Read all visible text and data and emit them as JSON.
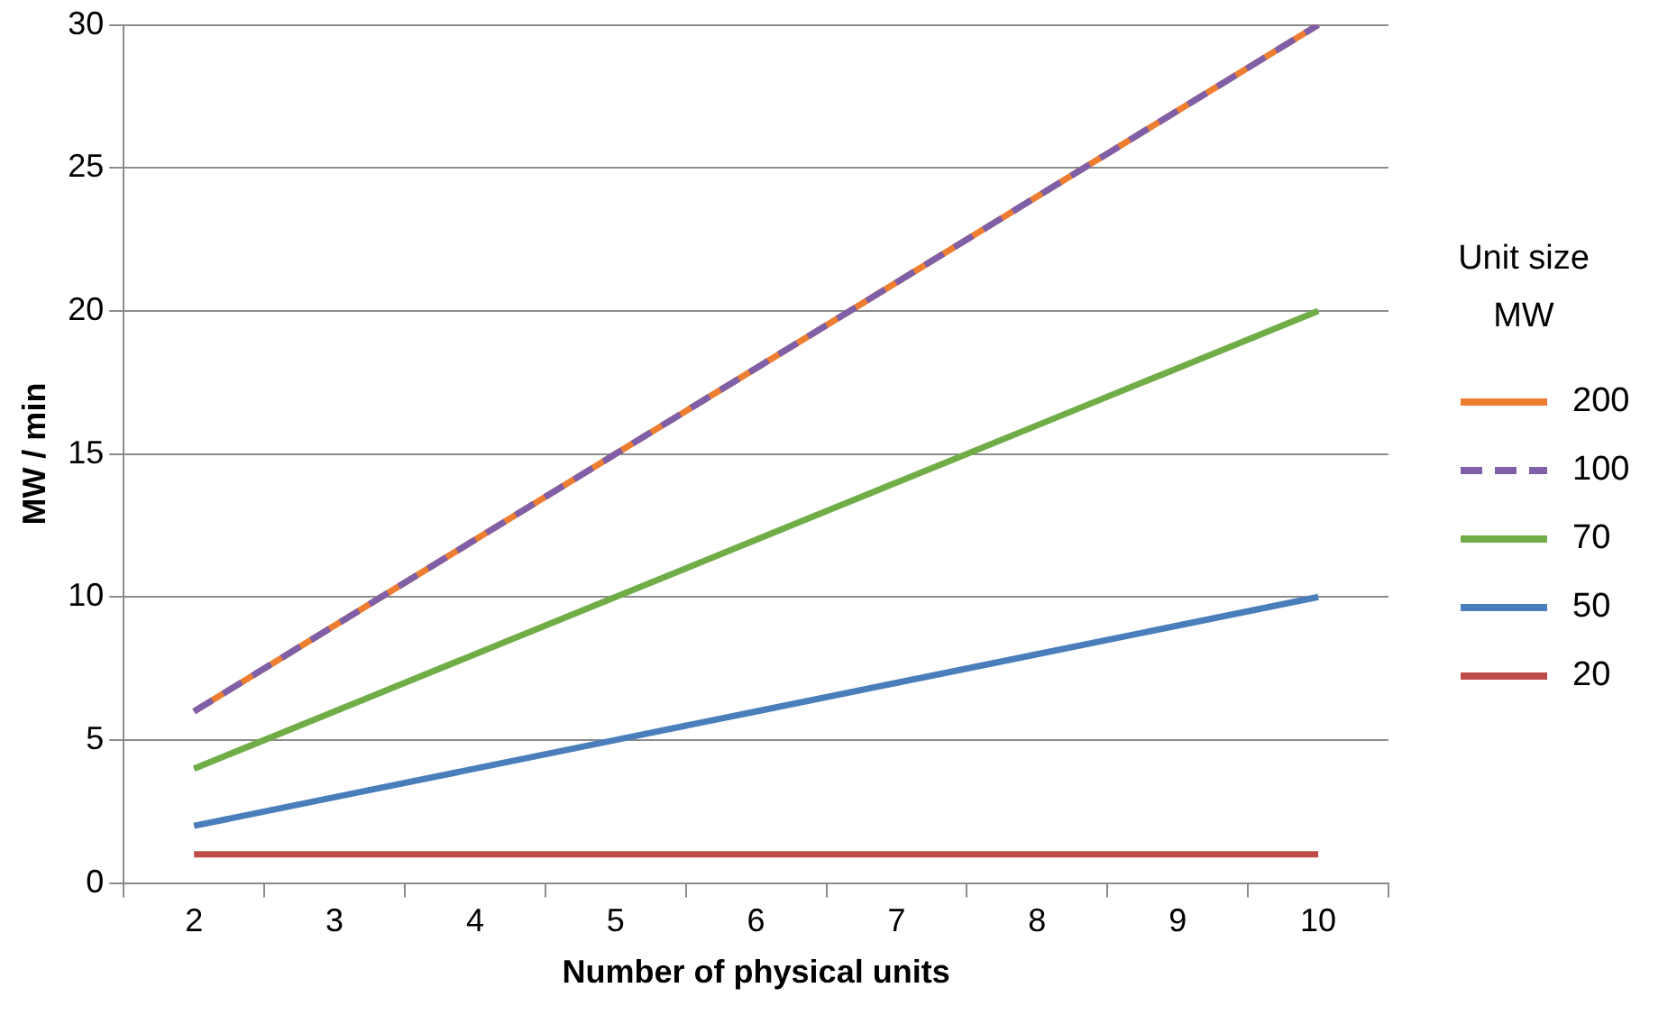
{
  "chart_data": {
    "type": "line",
    "xlabel": "Number of physical units",
    "ylabel": "MW / min",
    "legend_title": "Unit size MW",
    "categories": [
      "2",
      "3",
      "4",
      "5",
      "6",
      "7",
      "8",
      "9",
      "10"
    ],
    "series": [
      {
        "name": "200",
        "color": "#ed7d31",
        "values": [
          6,
          9,
          12,
          15,
          18,
          21,
          24,
          27,
          30
        ]
      },
      {
        "name": "100",
        "color": "#7f5fa8",
        "values": [
          6,
          9,
          12,
          15,
          18,
          21,
          24,
          27,
          30
        ],
        "line_style": "dashed"
      },
      {
        "name": "70",
        "color": "#70ad47",
        "values": [
          4,
          6,
          8,
          10,
          12,
          14,
          16,
          18,
          20
        ]
      },
      {
        "name": "50",
        "color": "#4a7ebb",
        "values": [
          2,
          3,
          4,
          5,
          6,
          7,
          8,
          9,
          10
        ]
      },
      {
        "name": "20",
        "color": "#be4b48",
        "values": [
          1,
          1,
          1,
          1,
          1,
          1,
          1,
          1,
          1
        ]
      }
    ],
    "ylim": [
      0,
      30
    ],
    "yticks": [
      0,
      5,
      10,
      15,
      20,
      25,
      30
    ],
    "grid": "y",
    "legend": "right",
    "marker": "none"
  }
}
